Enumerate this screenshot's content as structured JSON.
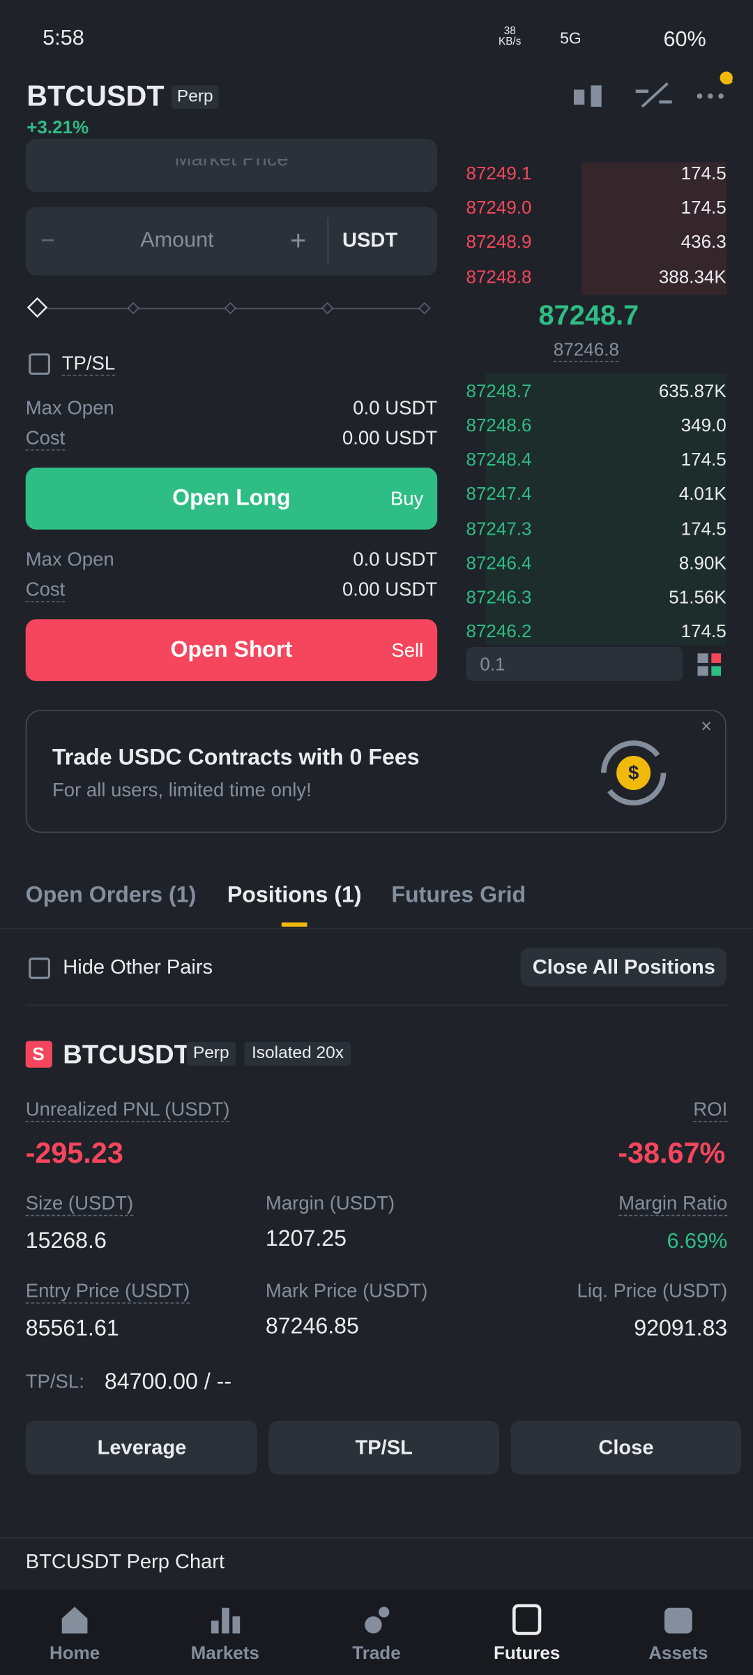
{
  "status_bar": {
    "time": "5:58",
    "speed": "38 KB/s",
    "network": "5G",
    "battery": "60%"
  },
  "header": {
    "symbol": "BTCUSDT",
    "tag": "Perp",
    "change": "+3.21%"
  },
  "order_form": {
    "price_placeholder": "Market Price",
    "minus": "−",
    "amount_placeholder": "Amount",
    "plus": "+",
    "unit": "USDT",
    "tpsl": "TP/SL",
    "long": {
      "max_open_label": "Max Open",
      "max_open_value": "0.0 USDT",
      "cost_label": "Cost",
      "cost_value": "0.00 USDT",
      "button": "Open Long",
      "side": "Buy"
    },
    "short": {
      "max_open_label": "Max Open",
      "max_open_value": "0.0 USDT",
      "cost_label": "Cost",
      "cost_value": "0.00 USDT",
      "button": "Open Short",
      "side": "Sell"
    }
  },
  "order_book": {
    "asks": [
      [
        "87249.1",
        "174.5"
      ],
      [
        "87249.0",
        "174.5"
      ],
      [
        "87248.9",
        "436.3"
      ],
      [
        "87248.8",
        "388.34K"
      ]
    ],
    "last_price": "87248.7",
    "mark_price": "87246.8",
    "bids": [
      [
        "87248.7",
        "635.87K"
      ],
      [
        "87248.6",
        "349.0"
      ],
      [
        "87248.4",
        "174.5"
      ],
      [
        "87247.4",
        "4.01K"
      ],
      [
        "87247.3",
        "174.5"
      ],
      [
        "87246.4",
        "8.90K"
      ],
      [
        "87246.3",
        "51.56K"
      ],
      [
        "87246.2",
        "174.5"
      ]
    ],
    "depth": "0.1"
  },
  "banner": {
    "title": "Trade USDC Contracts with 0 Fees",
    "subtitle": "For all users, limited time only!"
  },
  "tabs": [
    "Open Orders (1)",
    "Positions (1)",
    "Futures Grid"
  ],
  "filter": {
    "hide": "Hide Other Pairs",
    "close_all": "Close All Positions"
  },
  "position": {
    "side": "S",
    "symbol": "BTCUSDT",
    "tag": "Perp",
    "margin_mode": "Isolated 20x",
    "unrealized_label": "Unrealized PNL (USDT)",
    "unrealized_value": "-295.23",
    "roi_label": "ROI",
    "roi_value": "-38.67%",
    "size_label": "Size (USDT)",
    "size_value": "15268.6",
    "margin_label": "Margin (USDT)",
    "margin_value": "1207.25",
    "margin_ratio_label": "Margin Ratio",
    "margin_ratio_value": "6.69%",
    "entry_label": "Entry Price (USDT)",
    "entry_value": "85561.61",
    "mark_label": "Mark Price (USDT)",
    "mark_value": "87246.85",
    "liq_label": "Liq. Price (USDT)",
    "liq_value": "92091.83",
    "tpsl_label": "TP/SL:",
    "tpsl_value": "84700.00 / --",
    "buttons": [
      "Leverage",
      "TP/SL",
      "Close"
    ]
  },
  "chart_bar": "BTCUSDT Perp Chart",
  "nav": [
    "Home",
    "Markets",
    "Trade",
    "Futures",
    "Assets"
  ]
}
